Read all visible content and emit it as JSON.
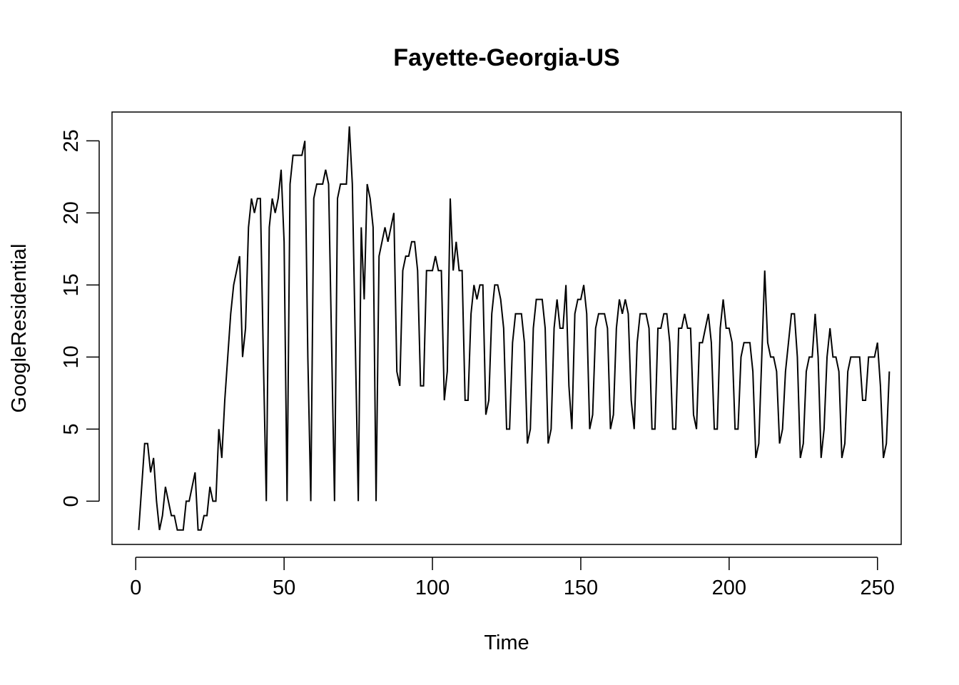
{
  "chart_data": {
    "type": "line",
    "title": "Fayette-Georgia-US",
    "xlabel": "Time",
    "ylabel": "GoogleResidential",
    "xlim": [
      -8,
      258
    ],
    "ylim": [
      -3,
      27
    ],
    "xticks": [
      0,
      50,
      100,
      150,
      200,
      250
    ],
    "yticks": [
      0,
      5,
      10,
      15,
      20,
      25
    ],
    "grid": false,
    "legend": "none",
    "line_color": "#000000",
    "x_start": 1,
    "series": [
      {
        "values": [
          -2,
          1,
          4,
          4,
          2,
          3,
          0,
          -2,
          -1,
          1,
          0,
          -1,
          -1,
          -2,
          -2,
          -2,
          0,
          0,
          1,
          2,
          -2,
          -2,
          -1,
          -1,
          1,
          0,
          0,
          5,
          3,
          7,
          10,
          13,
          15,
          16,
          17,
          10,
          12,
          19,
          21,
          20,
          21,
          21,
          10,
          0,
          19,
          21,
          20,
          21,
          23,
          18,
          0,
          22,
          24,
          24,
          24,
          24,
          25,
          10,
          0,
          21,
          22,
          22,
          22,
          23,
          22,
          11,
          0,
          21,
          22,
          22,
          22,
          26,
          22,
          11,
          0,
          19,
          14,
          22,
          21,
          19,
          0,
          17,
          18,
          19,
          18,
          19,
          20,
          9,
          8,
          16,
          17,
          17,
          18,
          18,
          16,
          8,
          8,
          16,
          16,
          16,
          17,
          16,
          16,
          7,
          9,
          21,
          16,
          18,
          16,
          16,
          7,
          7,
          13,
          15,
          14,
          15,
          15,
          6,
          7,
          13,
          15,
          15,
          14,
          12,
          5,
          5,
          11,
          13,
          13,
          13,
          11,
          4,
          5,
          12,
          14,
          14,
          14,
          12,
          4,
          5,
          12,
          14,
          12,
          12,
          15,
          8,
          5,
          13,
          14,
          14,
          15,
          13,
          5,
          6,
          12,
          13,
          13,
          13,
          12,
          5,
          6,
          12,
          14,
          13,
          14,
          13,
          7,
          5,
          11,
          13,
          13,
          13,
          12,
          5,
          5,
          12,
          12,
          13,
          13,
          11,
          5,
          5,
          12,
          12,
          13,
          12,
          12,
          6,
          5,
          11,
          11,
          12,
          13,
          11,
          5,
          5,
          12,
          14,
          12,
          12,
          11,
          5,
          5,
          10,
          11,
          11,
          11,
          9,
          3,
          4,
          10,
          16,
          11,
          10,
          10,
          9,
          4,
          5,
          9,
          11,
          13,
          13,
          10,
          3,
          4,
          9,
          10,
          10,
          13,
          10,
          3,
          5,
          10,
          12,
          10,
          10,
          9,
          3,
          4,
          9,
          10,
          10,
          10,
          10,
          7,
          7,
          10,
          10,
          10,
          11,
          8,
          3,
          4,
          9
        ]
      }
    ]
  }
}
